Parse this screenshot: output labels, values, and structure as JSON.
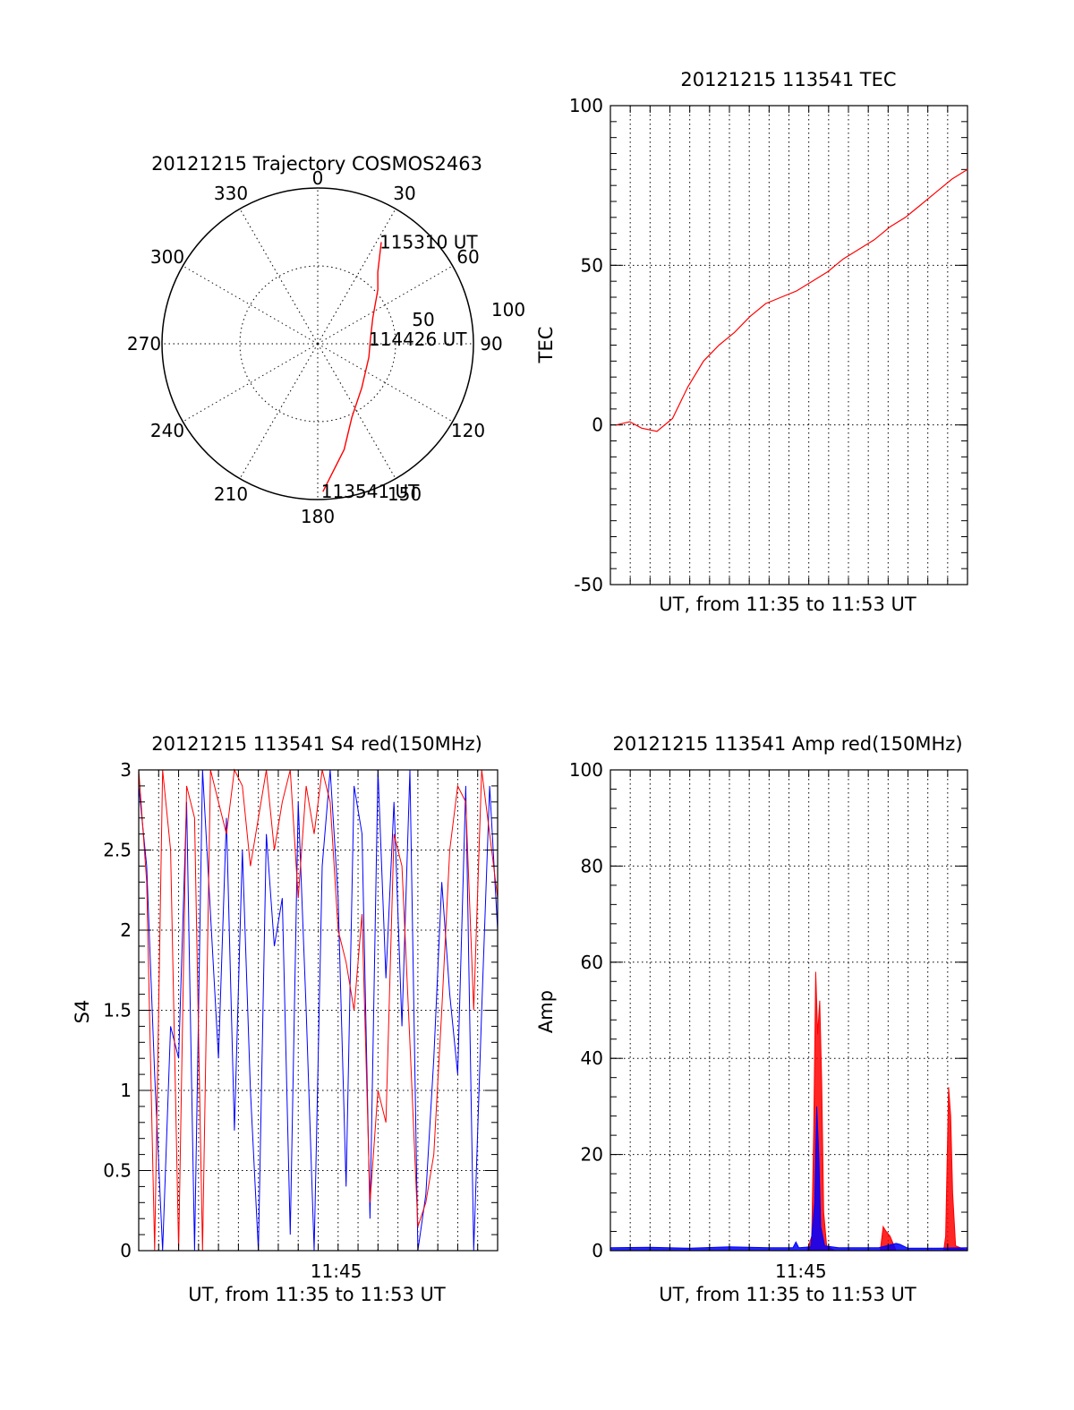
{
  "chart_data": [
    {
      "id": "polar",
      "type": "scatter",
      "title": "20121215 Trajectory COSMOS2463",
      "projection": "polar-azimuth-elevation",
      "azimuth_ticks": [
        "0",
        "30",
        "60",
        "90",
        "120",
        "150",
        "180",
        "210",
        "240",
        "270",
        "300",
        "330"
      ],
      "radial_ticks": [
        "50",
        "100"
      ],
      "series": [
        {
          "color": "#ff0000",
          "points": [
            {
              "az": 178,
              "r": 95
            },
            {
              "az": 166,
              "r": 70
            },
            {
              "az": 155,
              "r": 52
            },
            {
              "az": 135,
              "r": 40
            },
            {
              "az": 105,
              "r": 34
            },
            {
              "az": 85,
              "r": 34
            },
            {
              "az": 65,
              "r": 39
            },
            {
              "az": 48,
              "r": 52
            },
            {
              "az": 40,
              "r": 60
            },
            {
              "az": 32,
              "r": 77
            }
          ]
        }
      ],
      "annotations": [
        {
          "text": "115310 UT",
          "az": 32,
          "r": 77
        },
        {
          "text": "114426 UT",
          "az": 85,
          "r": 34
        },
        {
          "text": "113541 UT",
          "az": 178,
          "r": 95
        }
      ]
    },
    {
      "id": "tec",
      "type": "line",
      "title": "20121215 113541 TEC",
      "xlabel": "UT, from 11:35 to 11:53 UT",
      "ylabel": "TEC",
      "xlim": [
        0,
        18.4
      ],
      "ylim": [
        -50,
        100
      ],
      "yticks": [
        "-50",
        "0",
        "50",
        "100"
      ],
      "grid": true,
      "series": [
        {
          "color": "#ff0000",
          "x": [
            0.3,
            1.0,
            1.6,
            2.4,
            3.2,
            4.0,
            4.8,
            5.6,
            6.4,
            7.2,
            8.0,
            8.8,
            9.6,
            10.4,
            11.2,
            12.0,
            12.8,
            13.6,
            14.4,
            15.2,
            16.0,
            16.8,
            17.6,
            18.4
          ],
          "y": [
            0,
            1,
            -1,
            -2,
            2,
            12,
            20,
            25,
            29,
            34,
            38,
            40,
            42,
            45,
            48,
            52,
            55,
            58,
            62,
            65,
            69,
            73,
            77,
            80
          ]
        }
      ]
    },
    {
      "id": "s4",
      "type": "line",
      "title": "20121215 113541 S4 red(150MHz)",
      "xlabel": "UT, from 11:35 to 11:53 UT",
      "ylabel": "S4",
      "xlim": [
        0,
        18
      ],
      "ylim": [
        0,
        3
      ],
      "yticks": [
        "0",
        "0.5",
        "1",
        "1.5",
        "2",
        "2.5",
        "3"
      ],
      "xticks": [
        {
          "value": 9.9,
          "label": "11:45"
        }
      ],
      "grid": true,
      "series": [
        {
          "color": "#0000ff",
          "x": [
            0,
            0.4,
            0.8,
            1.2,
            1.6,
            2.0,
            2.4,
            2.8,
            3.2,
            3.6,
            4.0,
            4.4,
            4.8,
            5.2,
            5.6,
            6.0,
            6.4,
            6.8,
            7.2,
            7.6,
            8.0,
            8.4,
            8.8,
            9.2,
            9.6,
            10.0,
            10.4,
            10.8,
            11.2,
            11.6,
            12.0,
            12.4,
            12.8,
            13.2,
            13.6,
            14.0,
            14.4,
            14.8,
            15.2,
            15.6,
            16.0,
            16.4,
            16.8,
            17.2,
            17.6,
            18.0
          ],
          "y": [
            2.9,
            2.4,
            1.1,
            0.0,
            1.4,
            1.2,
            2.8,
            0.0,
            3.0,
            2.1,
            1.2,
            2.7,
            0.75,
            2.5,
            1.0,
            0.0,
            2.6,
            1.9,
            2.2,
            0.1,
            2.8,
            1.5,
            0.0,
            2.4,
            3.0,
            2.2,
            0.4,
            2.9,
            2.6,
            0.2,
            3.0,
            1.7,
            2.8,
            1.4,
            3.0,
            0.0,
            0.35,
            1.2,
            2.3,
            1.6,
            1.1,
            2.9,
            0.0,
            1.5,
            2.9,
            2.0
          ]
        },
        {
          "color": "#ff0000",
          "x": [
            0,
            0.4,
            0.8,
            1.2,
            1.6,
            2.0,
            2.4,
            2.8,
            3.2,
            3.6,
            4.0,
            4.4,
            4.8,
            5.2,
            5.6,
            6.0,
            6.4,
            6.8,
            7.2,
            7.6,
            8.0,
            8.4,
            8.8,
            9.2,
            9.6,
            10.0,
            10.4,
            10.8,
            11.2,
            11.6,
            12.0,
            12.4,
            12.8,
            13.2,
            13.6,
            14.0,
            14.4,
            14.8,
            15.2,
            15.6,
            16.0,
            16.4,
            16.8,
            17.2,
            17.6,
            18.0
          ],
          "y": [
            3.0,
            2.3,
            0.0,
            3.0,
            2.5,
            0.0,
            2.9,
            2.7,
            0.0,
            3.0,
            2.8,
            2.6,
            3.0,
            2.9,
            2.4,
            2.7,
            3.0,
            2.5,
            2.8,
            3.0,
            2.2,
            2.9,
            2.6,
            3.0,
            2.8,
            2.0,
            1.8,
            1.5,
            2.1,
            0.3,
            1.0,
            0.8,
            2.6,
            2.4,
            1.3,
            0.15,
            0.3,
            0.6,
            1.5,
            2.5,
            2.9,
            2.8,
            1.5,
            3.0,
            2.6,
            2.2
          ]
        }
      ]
    },
    {
      "id": "amp",
      "type": "line",
      "title": "20121215 113541 Amp red(150MHz)",
      "xlabel": "UT, from 11:35 to 11:53 UT",
      "ylabel": "Amp",
      "xlim": [
        0,
        18
      ],
      "ylim": [
        0,
        100
      ],
      "yticks": [
        "0",
        "20",
        "40",
        "60",
        "80",
        "100"
      ],
      "xticks": [
        {
          "value": 9.6,
          "label": "11:45"
        }
      ],
      "grid": true,
      "series": [
        {
          "color": "#ff0000",
          "x": [
            0,
            9.9,
            10.15,
            10.25,
            10.35,
            10.45,
            10.55,
            10.65,
            10.75,
            10.9,
            11.3,
            13.2,
            13.6,
            13.75,
            13.9,
            14.1,
            14.4,
            16.8,
            16.9,
            16.98,
            17.05,
            17.15,
            17.25,
            17.4,
            18.0
          ],
          "y": [
            0,
            0,
            3,
            25,
            58,
            45,
            52,
            35,
            8,
            1,
            0,
            0,
            0,
            5,
            4,
            3,
            0,
            0,
            3,
            20,
            34,
            28,
            12,
            1,
            0
          ]
        },
        {
          "color": "#0000ff",
          "x": [
            0,
            2.0,
            4.0,
            6.0,
            8.0,
            9.2,
            9.35,
            9.5,
            10.1,
            10.3,
            10.4,
            10.5,
            10.6,
            10.8,
            11.5,
            13.5,
            14.4,
            14.6,
            15.0,
            16.5,
            18.0
          ],
          "y": [
            0.6,
            0.7,
            0.5,
            0.8,
            0.6,
            0.6,
            1.8,
            0.6,
            0.8,
            10,
            30,
            20,
            5,
            1,
            0.6,
            0.6,
            1.5,
            1.3,
            0.5,
            0.5,
            0.6
          ]
        }
      ]
    }
  ]
}
